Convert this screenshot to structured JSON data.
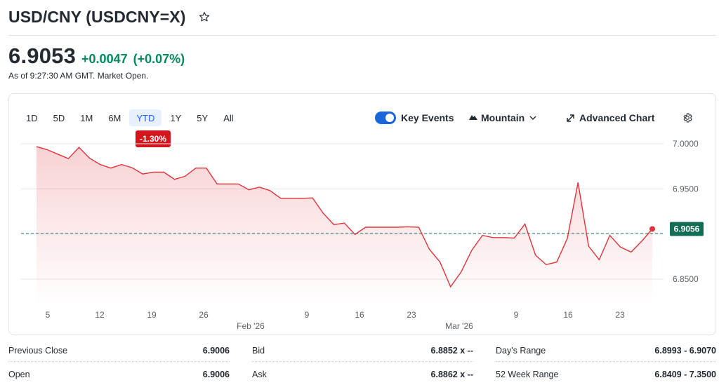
{
  "quote": {
    "title": "USD/CNY (USDCNY=X)",
    "price": "6.9053",
    "change": "+0.0047",
    "change_pct": "(+0.07%)",
    "as_of": "As of 9:27:30 AM GMT. Market Open."
  },
  "range_tabs": [
    "1D",
    "5D",
    "1M",
    "6M",
    "YTD",
    "1Y",
    "5Y",
    "All"
  ],
  "active_range": "YTD",
  "performance_badge": "-1.30%",
  "tools": {
    "key_events": "Key Events",
    "chart_type": "Mountain",
    "advanced_chart": "Advanced Chart"
  },
  "chart_data": {
    "type": "area",
    "y_ticks": [
      "7.0000",
      "6.9500",
      "6.8500"
    ],
    "current_label": "6.9056",
    "x_tick_labels": [
      "5",
      "12",
      "19",
      "26",
      "9",
      "16",
      "23",
      "9",
      "16",
      "23"
    ],
    "month_labels": [
      "Feb '26",
      "Mar '26"
    ],
    "ylim": [
      6.83,
      7.01
    ],
    "reference_line": 6.9006,
    "series": [
      {
        "values": [
          6.9968,
          6.9935,
          6.9885,
          6.9835,
          6.996,
          6.984,
          6.977,
          6.973,
          6.977,
          6.9735,
          6.9665,
          6.9685,
          6.9685,
          6.9605,
          6.964,
          6.973,
          6.973,
          6.9555,
          6.9555,
          6.9555,
          6.949,
          6.952,
          6.948,
          6.9395,
          6.9395,
          6.9395,
          6.94,
          6.923,
          6.9105,
          6.912,
          6.8995,
          6.9075,
          6.9075,
          6.9075,
          6.9075,
          6.908,
          6.9075,
          6.883,
          6.869,
          6.8415,
          6.858,
          6.882,
          6.8985,
          6.896,
          6.896,
          6.8955,
          6.911,
          6.8765,
          6.866,
          6.869,
          6.895,
          6.957,
          6.8865,
          6.8715,
          6.8985,
          6.8855,
          6.88,
          6.892,
          6.9056
        ]
      }
    ]
  },
  "stats": [
    {
      "label": "Previous Close",
      "value": "6.9006"
    },
    {
      "label": "Open",
      "value": "6.9006"
    },
    {
      "label": "Bid",
      "value": "6.8852 x --"
    },
    {
      "label": "Ask",
      "value": "6.8862 x --"
    },
    {
      "label": "Day's Range",
      "value": "6.8993 - 6.9070"
    },
    {
      "label": "52 Week Range",
      "value": "6.8409 - 7.3500"
    }
  ],
  "colors": {
    "accent": "#0f69ff",
    "positive": "#008a5c",
    "negative": "#d3161d",
    "line": "#e0323a",
    "ref_line": "#2e7d6b"
  },
  "icons": [
    "star-icon",
    "mountain-icon",
    "chevron-down-icon",
    "expand-icon",
    "gear-icon"
  ]
}
